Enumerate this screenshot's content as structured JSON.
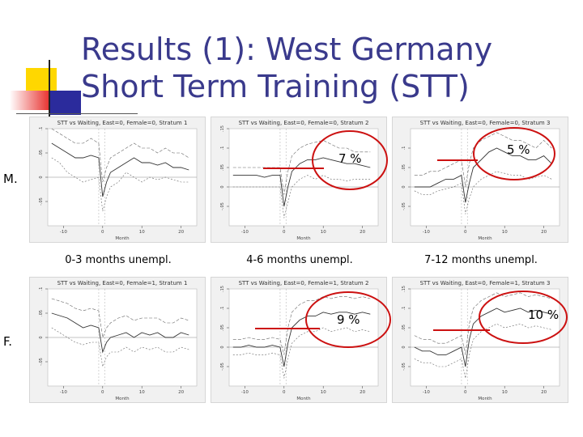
{
  "slide": {
    "title_line1": "Results (1): West Germany",
    "title_line2": "Short Term Training (STT)",
    "row_labels": [
      "M.",
      "F."
    ],
    "col_labels": [
      "0-3 months unempl.",
      "4-6 months unempl.",
      "7-12 months unempl."
    ]
  },
  "colors": {
    "title": "#3a3a8c",
    "annotation": "#cc1111",
    "deco_yellow": "#ffd700",
    "deco_red": "#e8322f",
    "deco_blue": "#2b2b9c"
  },
  "annotations": [
    {
      "panel": 1,
      "text": "7 %"
    },
    {
      "panel": 2,
      "text": "5 %"
    },
    {
      "panel": 4,
      "text": "9 %"
    },
    {
      "panel": 5,
      "text": "10 %"
    }
  ],
  "chart_data": [
    {
      "type": "line",
      "title": "STT vs Waiting, East=0, Female=0, Stratum 1",
      "xlabel": "Month",
      "x": [
        -13,
        -11,
        -9,
        -7,
        -5,
        -3,
        -1,
        0,
        1,
        2,
        4,
        6,
        8,
        10,
        12,
        14,
        16,
        18,
        20,
        22
      ],
      "xlim": [
        -14,
        24
      ],
      "ylim": [
        -0.1,
        0.1
      ],
      "xticks": [
        "-10",
        "0",
        "10",
        "20"
      ],
      "yticks": [
        ".1",
        ".05",
        "0",
        "-.05"
      ],
      "series": [
        {
          "values": [
            0.04,
            0.03,
            0.01,
            0.0,
            -0.01,
            -0.005,
            0.0,
            -0.07,
            -0.04,
            -0.02,
            -0.01,
            0.01,
            0.0,
            -0.01,
            0.0,
            -0.005,
            0.0,
            -0.005,
            -0.01,
            -0.01
          ]
        },
        {
          "values": [
            0.07,
            0.06,
            0.05,
            0.04,
            0.04,
            0.045,
            0.04,
            -0.04,
            -0.01,
            0.01,
            0.02,
            0.03,
            0.04,
            0.03,
            0.03,
            0.025,
            0.03,
            0.02,
            0.02,
            0.015
          ]
        },
        {
          "values": [
            0.1,
            0.09,
            0.08,
            0.07,
            0.07,
            0.08,
            0.07,
            -0.01,
            0.02,
            0.04,
            0.05,
            0.06,
            0.07,
            0.06,
            0.06,
            0.05,
            0.06,
            0.05,
            0.05,
            0.04
          ]
        }
      ]
    },
    {
      "type": "line",
      "title": "STT vs Waiting, East=0, Female=0, Stratum 2",
      "xlabel": "Month",
      "x": [
        -13,
        -11,
        -9,
        -7,
        -5,
        -3,
        -1,
        0,
        1,
        2,
        4,
        6,
        8,
        10,
        12,
        14,
        16,
        18,
        20,
        22
      ],
      "xlim": [
        -14,
        24
      ],
      "ylim": [
        -0.1,
        0.15
      ],
      "xticks": [
        "-10",
        "0",
        "10",
        "20"
      ],
      "yticks": [
        ".15",
        ".1",
        ".05",
        "0",
        "-.05"
      ],
      "series": [
        {
          "values": [
            0.0,
            0.0,
            0.0,
            0.0,
            0.0,
            0.0,
            0.0,
            -0.08,
            -0.04,
            0.0,
            0.02,
            0.03,
            0.02,
            0.03,
            0.02,
            0.02,
            0.015,
            0.02,
            0.02,
            0.02
          ]
        },
        {
          "values": [
            0.03,
            0.03,
            0.03,
            0.03,
            0.025,
            0.03,
            0.03,
            -0.05,
            0.0,
            0.04,
            0.06,
            0.07,
            0.07,
            0.075,
            0.07,
            0.065,
            0.06,
            0.06,
            0.055,
            0.05
          ]
        },
        {
          "values": [
            0.05,
            0.05,
            0.05,
            0.05,
            0.05,
            0.05,
            0.05,
            -0.02,
            0.04,
            0.08,
            0.1,
            0.11,
            0.115,
            0.12,
            0.11,
            0.1,
            0.1,
            0.09,
            0.09,
            0.09
          ]
        }
      ]
    },
    {
      "type": "line",
      "title": "STT vs Waiting, East=0, Female=0, Stratum 3",
      "xlabel": "Month",
      "x": [
        -13,
        -11,
        -9,
        -7,
        -5,
        -3,
        -1,
        0,
        1,
        2,
        4,
        6,
        8,
        10,
        12,
        14,
        16,
        18,
        20,
        22
      ],
      "xlim": [
        -14,
        24
      ],
      "ylim": [
        -0.1,
        0.15
      ],
      "xticks": [
        "-10",
        "0",
        "10",
        "20"
      ],
      "yticks": [
        ".1",
        ".05",
        "0",
        "-.05"
      ],
      "series": [
        {
          "values": [
            -0.01,
            -0.02,
            -0.02,
            -0.01,
            -0.005,
            0.0,
            0.01,
            -0.07,
            -0.03,
            0.0,
            0.02,
            0.03,
            0.04,
            0.035,
            0.03,
            0.03,
            0.02,
            0.025,
            0.03,
            0.02
          ]
        },
        {
          "values": [
            0.0,
            0.0,
            0.0,
            0.01,
            0.02,
            0.02,
            0.03,
            -0.04,
            0.01,
            0.05,
            0.07,
            0.09,
            0.1,
            0.09,
            0.08,
            0.08,
            0.07,
            0.07,
            0.08,
            0.06
          ]
        },
        {
          "values": [
            0.03,
            0.03,
            0.04,
            0.04,
            0.05,
            0.06,
            0.07,
            0.0,
            0.06,
            0.1,
            0.12,
            0.13,
            0.14,
            0.13,
            0.12,
            0.12,
            0.11,
            0.1,
            0.12,
            0.1
          ]
        }
      ]
    },
    {
      "type": "line",
      "title": "STT vs Waiting, East=0, Female=1, Stratum 1",
      "xlabel": "Month",
      "x": [
        -13,
        -11,
        -9,
        -7,
        -5,
        -3,
        -1,
        0,
        1,
        2,
        4,
        6,
        8,
        10,
        12,
        14,
        16,
        18,
        20,
        22
      ],
      "xlim": [
        -14,
        24
      ],
      "ylim": [
        -0.1,
        0.1
      ],
      "xticks": [
        "-10",
        "0",
        "10",
        "20"
      ],
      "yticks": [
        ".1",
        ".05",
        "0",
        "-.05"
      ],
      "series": [
        {
          "values": [
            0.02,
            0.01,
            0.0,
            -0.01,
            -0.015,
            -0.01,
            -0.01,
            -0.06,
            -0.04,
            -0.03,
            -0.03,
            -0.02,
            -0.03,
            -0.02,
            -0.025,
            -0.02,
            -0.03,
            -0.03,
            -0.02,
            -0.025
          ]
        },
        {
          "values": [
            0.05,
            0.045,
            0.04,
            0.03,
            0.02,
            0.025,
            0.02,
            -0.03,
            -0.01,
            0.0,
            0.005,
            0.01,
            0.0,
            0.01,
            0.005,
            0.01,
            0.0,
            0.0,
            0.01,
            0.005
          ]
        },
        {
          "values": [
            0.08,
            0.075,
            0.07,
            0.06,
            0.055,
            0.06,
            0.055,
            0.0,
            0.02,
            0.03,
            0.04,
            0.045,
            0.035,
            0.04,
            0.04,
            0.04,
            0.03,
            0.03,
            0.04,
            0.035
          ]
        }
      ]
    },
    {
      "type": "line",
      "title": "STT vs Waiting, East=0, Female=1, Stratum 2",
      "xlabel": "Month",
      "x": [
        -13,
        -11,
        -9,
        -7,
        -5,
        -3,
        -1,
        0,
        1,
        2,
        4,
        6,
        8,
        10,
        12,
        14,
        16,
        18,
        20,
        22
      ],
      "xlim": [
        -14,
        24
      ],
      "ylim": [
        -0.1,
        0.15
      ],
      "xticks": [
        "-10",
        "0",
        "10",
        "20"
      ],
      "yticks": [
        ".15",
        ".1",
        ".05",
        "0",
        "-.05"
      ],
      "series": [
        {
          "values": [
            -0.02,
            -0.02,
            -0.015,
            -0.02,
            -0.02,
            -0.015,
            -0.02,
            -0.08,
            -0.03,
            0.01,
            0.03,
            0.04,
            0.04,
            0.05,
            0.04,
            0.045,
            0.05,
            0.04,
            0.045,
            0.04
          ]
        },
        {
          "values": [
            0.0,
            0.0,
            0.005,
            0.0,
            0.0,
            0.005,
            0.0,
            -0.05,
            0.01,
            0.05,
            0.07,
            0.08,
            0.08,
            0.09,
            0.085,
            0.09,
            0.09,
            0.085,
            0.09,
            0.085
          ]
        },
        {
          "values": [
            0.02,
            0.02,
            0.025,
            0.02,
            0.02,
            0.025,
            0.02,
            -0.02,
            0.05,
            0.09,
            0.11,
            0.12,
            0.12,
            0.13,
            0.125,
            0.13,
            0.13,
            0.125,
            0.13,
            0.125
          ]
        }
      ]
    },
    {
      "type": "line",
      "title": "STT vs Waiting, East=0, Female=1, Stratum 3",
      "xlabel": "Month",
      "x": [
        -13,
        -11,
        -9,
        -7,
        -5,
        -3,
        -1,
        0,
        1,
        2,
        4,
        6,
        8,
        10,
        12,
        14,
        16,
        18,
        20,
        22
      ],
      "xlim": [
        -14,
        24
      ],
      "ylim": [
        -0.1,
        0.15
      ],
      "xticks": [
        "-10",
        "0",
        "10",
        "20"
      ],
      "yticks": [
        ".15",
        ".1",
        ".05",
        "0",
        "-.05"
      ],
      "series": [
        {
          "values": [
            -0.03,
            -0.04,
            -0.04,
            -0.05,
            -0.05,
            -0.04,
            -0.03,
            -0.08,
            -0.02,
            0.02,
            0.04,
            0.05,
            0.06,
            0.05,
            0.055,
            0.06,
            0.05,
            0.055,
            0.05,
            0.045
          ]
        },
        {
          "values": [
            0.0,
            -0.01,
            -0.01,
            -0.02,
            -0.02,
            -0.01,
            0.0,
            -0.05,
            0.02,
            0.06,
            0.08,
            0.09,
            0.1,
            0.09,
            0.095,
            0.1,
            0.09,
            0.095,
            0.09,
            0.085
          ]
        },
        {
          "values": [
            0.03,
            0.02,
            0.02,
            0.01,
            0.01,
            0.02,
            0.03,
            -0.02,
            0.06,
            0.1,
            0.12,
            0.13,
            0.14,
            0.13,
            0.135,
            0.14,
            0.13,
            0.135,
            0.13,
            0.125
          ]
        }
      ]
    }
  ]
}
